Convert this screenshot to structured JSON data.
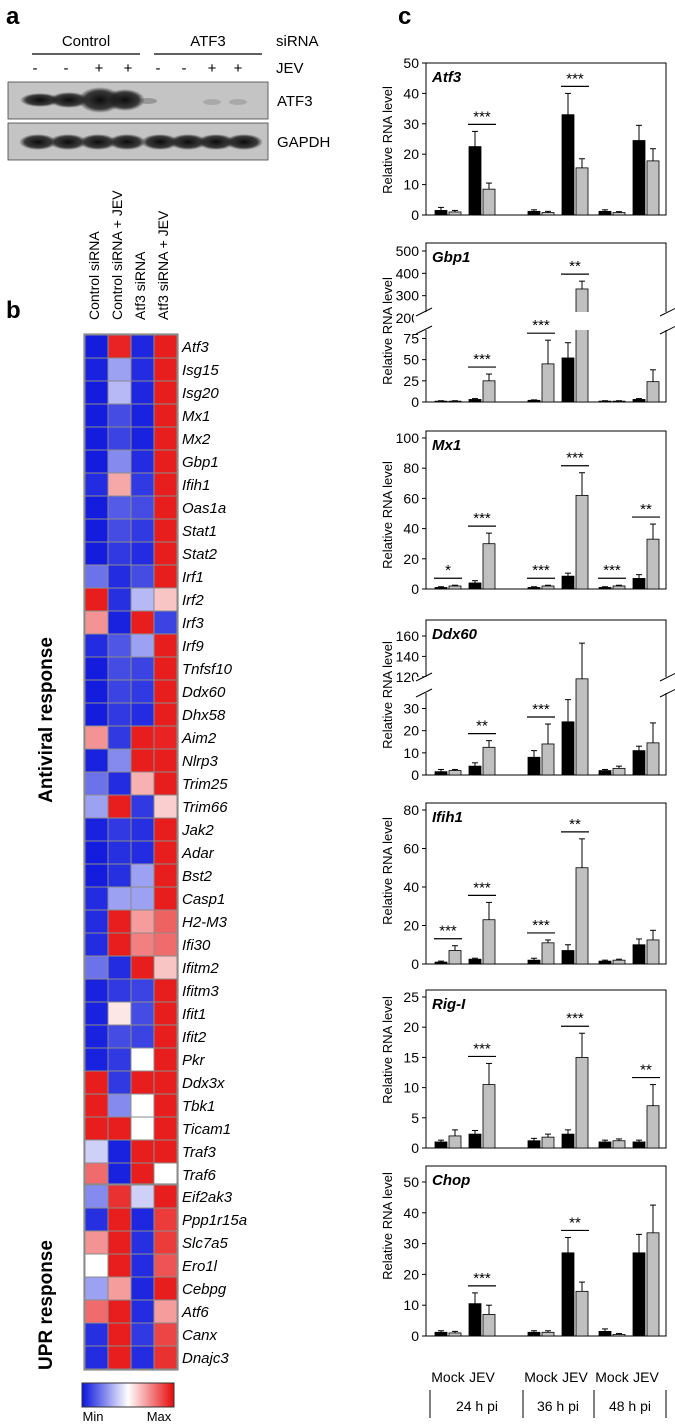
{
  "figure": {
    "panel_a": {
      "label": "a",
      "groups": [
        "Control",
        "ATF3"
      ],
      "group_row_label": "siRNA",
      "jev_row_label": "JEV",
      "jev_signs": [
        "-",
        "-",
        "+",
        "+",
        "-",
        "-",
        "+",
        "+"
      ],
      "blots": [
        "ATF3",
        "GAPDH"
      ]
    },
    "panel_b": {
      "label": "b",
      "columns": [
        "Control siRNA",
        "Control siRNA + JEV",
        "Atf3  siRNA",
        "Atf3  siRNA + JEV"
      ],
      "section_antiviral": "Antiviral response",
      "section_upr": "UPR response",
      "legend_min": "Min",
      "legend_max": "Max",
      "antiviral_genes": [
        {
          "gene": "Atf3",
          "values": [
            0.02,
            0.95,
            0.04,
            0.96
          ]
        },
        {
          "gene": "Isg15",
          "values": [
            0.03,
            0.3,
            0.05,
            0.96
          ]
        },
        {
          "gene": "Isg20",
          "values": [
            0.02,
            0.35,
            0.04,
            0.96
          ]
        },
        {
          "gene": "Mx1",
          "values": [
            0.02,
            0.12,
            0.03,
            0.96
          ]
        },
        {
          "gene": "Mx2",
          "values": [
            0.02,
            0.1,
            0.03,
            0.96
          ]
        },
        {
          "gene": "Gbp1",
          "values": [
            0.02,
            0.25,
            0.05,
            0.96
          ]
        },
        {
          "gene": "Ifih1",
          "values": [
            0.05,
            0.68,
            0.08,
            0.96
          ]
        },
        {
          "gene": "Oas1a",
          "values": [
            0.02,
            0.15,
            0.12,
            0.96
          ]
        },
        {
          "gene": "Stat1",
          "values": [
            0.02,
            0.12,
            0.08,
            0.96
          ]
        },
        {
          "gene": "Stat2",
          "values": [
            0.02,
            0.08,
            0.05,
            0.96
          ]
        },
        {
          "gene": "Irf1",
          "values": [
            0.2,
            0.05,
            0.12,
            0.96
          ]
        },
        {
          "gene": "Irf2",
          "values": [
            0.96,
            0.06,
            0.35,
            0.62
          ]
        },
        {
          "gene": "Irf3",
          "values": [
            0.72,
            0.03,
            0.96,
            0.1
          ]
        },
        {
          "gene": "Irf9",
          "values": [
            0.05,
            0.14,
            0.3,
            0.96
          ]
        },
        {
          "gene": "Tnfsf10",
          "values": [
            0.02,
            0.12,
            0.1,
            0.96
          ]
        },
        {
          "gene": "Ddx60",
          "values": [
            0.02,
            0.1,
            0.08,
            0.96
          ]
        },
        {
          "gene": "Dhx58",
          "values": [
            0.02,
            0.08,
            0.05,
            0.96
          ]
        },
        {
          "gene": "Aim2",
          "values": [
            0.72,
            0.08,
            0.96,
            0.95
          ]
        },
        {
          "gene": "Nlrp3",
          "values": [
            0.03,
            0.25,
            0.96,
            0.96
          ]
        },
        {
          "gene": "Trim25",
          "values": [
            0.2,
            0.05,
            0.66,
            0.96
          ]
        },
        {
          "gene": "Trim66",
          "values": [
            0.3,
            0.96,
            0.08,
            0.6
          ]
        },
        {
          "gene": "Jak2",
          "values": [
            0.03,
            0.08,
            0.06,
            0.96
          ]
        },
        {
          "gene": "Adar",
          "values": [
            0.02,
            0.06,
            0.05,
            0.96
          ]
        },
        {
          "gene": "Bst2",
          "values": [
            0.02,
            0.06,
            0.3,
            0.96
          ]
        },
        {
          "gene": "Casp1",
          "values": [
            0.05,
            0.3,
            0.3,
            0.96
          ]
        },
        {
          "gene": "H2-M3",
          "values": [
            0.05,
            0.96,
            0.7,
            0.82
          ]
        },
        {
          "gene": "Ifi30",
          "values": [
            0.05,
            0.96,
            0.76,
            0.8
          ]
        },
        {
          "gene": "Ifitm2",
          "values": [
            0.2,
            0.05,
            0.96,
            0.62
          ]
        },
        {
          "gene": "Ifitm3",
          "values": [
            0.03,
            0.08,
            0.1,
            0.96
          ]
        },
        {
          "gene": "Ifit1",
          "values": [
            0.03,
            0.55,
            0.12,
            0.96
          ]
        },
        {
          "gene": "Ifit2",
          "values": [
            0.03,
            0.12,
            0.1,
            0.96
          ]
        },
        {
          "gene": "Pkr",
          "values": [
            0.03,
            0.08,
            0.5,
            0.96
          ]
        },
        {
          "gene": "Ddx3x",
          "values": [
            0.96,
            0.08,
            0.96,
            0.96
          ]
        },
        {
          "gene": "Tbk1",
          "values": [
            0.96,
            0.25,
            0.5,
            0.96
          ]
        },
        {
          "gene": "Ticam1",
          "values": [
            0.96,
            0.96,
            0.5,
            0.96
          ]
        },
        {
          "gene": "Traf3",
          "values": [
            0.4,
            0.03,
            0.96,
            0.96
          ]
        },
        {
          "gene": "Traf6",
          "values": [
            0.8,
            0.03,
            0.96,
            0.5
          ]
        }
      ],
      "upr_genes": [
        {
          "gene": "Eif2ak3",
          "values": [
            0.25,
            0.92,
            0.4,
            0.96
          ]
        },
        {
          "gene": "Ppp1r15a",
          "values": [
            0.06,
            0.96,
            0.04,
            0.9
          ]
        },
        {
          "gene": "Slc7a5",
          "values": [
            0.72,
            0.96,
            0.06,
            0.9
          ]
        },
        {
          "gene": "Ero1l",
          "values": [
            0.5,
            0.96,
            0.05,
            0.85
          ]
        },
        {
          "gene": "Cebpg",
          "values": [
            0.3,
            0.7,
            0.04,
            0.96
          ]
        },
        {
          "gene": "Atf6",
          "values": [
            0.8,
            0.96,
            0.05,
            0.7
          ]
        },
        {
          "gene": "Canx",
          "values": [
            0.06,
            0.96,
            0.08,
            0.88
          ]
        },
        {
          "gene": "Dnajc3",
          "values": [
            0.05,
            0.96,
            0.05,
            0.92
          ]
        }
      ]
    },
    "panel_c": {
      "label": "c",
      "ylabel": "Relative RNA level",
      "x_labels": [
        "Mock",
        "JEV",
        "Mock",
        "JEV",
        "Mock",
        "JEV"
      ],
      "timepoints": [
        "24 h pi",
        "36 h pi",
        "48 h pi"
      ]
    }
  },
  "chart_data": [
    {
      "type": "bar",
      "title": "Atf3",
      "ylabel": "Relative RNA level",
      "categories": [
        "24 h pi Mock",
        "24 h pi JEV",
        "36 h pi Mock",
        "36 h pi JEV",
        "48 h pi Mock",
        "48 h pi JEV"
      ],
      "series": [
        {
          "name": "Control siRNA",
          "color": "#000000",
          "values": [
            1.5,
            22.5,
            1.2,
            33,
            1.2,
            24.5
          ],
          "errors": [
            1,
            5,
            0.5,
            7,
            0.5,
            5
          ]
        },
        {
          "name": "Atf3 siRNA",
          "color": "#c0c0c0",
          "values": [
            1,
            8.5,
            0.8,
            15.5,
            0.8,
            17.8
          ],
          "errors": [
            0.5,
            2,
            0.4,
            3,
            0.3,
            4
          ]
        }
      ],
      "ylim": [
        0,
        50
      ],
      "yticks": [
        0,
        10,
        20,
        30,
        40,
        50
      ],
      "significance": [
        {
          "group": 1,
          "label": "***"
        },
        {
          "group": 3,
          "label": "***"
        }
      ]
    },
    {
      "type": "bar",
      "title": "Gbp1",
      "ylabel": "Relative RNA level",
      "axis_break": true,
      "categories": [
        "24 h pi Mock",
        "24 h pi JEV",
        "36 h pi Mock",
        "36 h pi JEV",
        "48 h pi Mock",
        "48 h pi JEV"
      ],
      "series": [
        {
          "name": "Control siRNA",
          "color": "#000000",
          "values": [
            1,
            3,
            2,
            52,
            1,
            3
          ],
          "errors": [
            0.5,
            1,
            0.5,
            18,
            0.5,
            1
          ]
        },
        {
          "name": "Atf3 siRNA",
          "color": "#c0c0c0",
          "values": [
            1,
            25,
            45,
            330,
            1,
            24
          ],
          "errors": [
            0.5,
            8,
            28,
            35,
            0.5,
            14
          ]
        }
      ],
      "yticks": [
        0,
        25,
        50,
        75,
        200,
        300,
        400,
        500
      ],
      "significance": [
        {
          "group": 1,
          "label": "***"
        },
        {
          "group": 2,
          "label": "***"
        },
        {
          "group": 3,
          "label": "**"
        }
      ]
    },
    {
      "type": "bar",
      "title": "Mx1",
      "ylabel": "Relative RNA level",
      "categories": [
        "24 h pi Mock",
        "24 h pi JEV",
        "36 h pi Mock",
        "36 h pi JEV",
        "48 h pi Mock",
        "48 h pi JEV"
      ],
      "series": [
        {
          "name": "Control siRNA",
          "color": "#000000",
          "values": [
            1,
            4,
            1,
            8.5,
            1,
            7
          ],
          "errors": [
            0.5,
            1.5,
            0.5,
            2,
            0.5,
            2.5
          ]
        },
        {
          "name": "Atf3 siRNA",
          "color": "#c0c0c0",
          "values": [
            2,
            30,
            2,
            62,
            2,
            33
          ],
          "errors": [
            0.5,
            7,
            0.5,
            15,
            0.5,
            10
          ]
        }
      ],
      "ylim": [
        0,
        100
      ],
      "yticks": [
        0,
        20,
        40,
        60,
        80,
        100
      ],
      "significance": [
        {
          "group": 0,
          "label": "*"
        },
        {
          "group": 1,
          "label": "***"
        },
        {
          "group": 2,
          "label": "***"
        },
        {
          "group": 3,
          "label": "***"
        },
        {
          "group": 4,
          "label": "***"
        },
        {
          "group": 5,
          "label": "**"
        }
      ]
    },
    {
      "type": "bar",
      "title": "Ddx60",
      "ylabel": "Relative RNA level",
      "axis_break": true,
      "categories": [
        "24 h pi Mock",
        "24 h pi JEV",
        "36 h pi Mock",
        "36 h pi JEV",
        "48 h pi Mock",
        "48 h pi JEV"
      ],
      "series": [
        {
          "name": "Control siRNA",
          "color": "#000000",
          "values": [
            1.5,
            4,
            8,
            24,
            2,
            11
          ],
          "errors": [
            1,
            1.5,
            3,
            10,
            0.5,
            2
          ]
        },
        {
          "name": "Atf3 siRNA",
          "color": "#c0c0c0",
          "values": [
            2,
            12.5,
            14,
            118,
            3,
            14.5
          ],
          "errors": [
            0.5,
            3,
            9,
            35,
            1,
            9
          ]
        }
      ],
      "yticks": [
        0,
        10,
        20,
        30,
        120,
        140,
        160
      ],
      "significance": [
        {
          "group": 1,
          "label": "**"
        },
        {
          "group": 2,
          "label": "***"
        }
      ]
    },
    {
      "type": "bar",
      "title": "Ifih1",
      "ylabel": "Relative RNA level",
      "categories": [
        "24 h pi Mock",
        "24 h pi JEV",
        "36 h pi Mock",
        "36 h pi JEV",
        "48 h pi Mock",
        "48 h pi JEV"
      ],
      "series": [
        {
          "name": "Control siRNA",
          "color": "#000000",
          "values": [
            1,
            2.5,
            2,
            7,
            1.5,
            10
          ],
          "errors": [
            0.5,
            0.5,
            1,
            3,
            0.5,
            3
          ]
        },
        {
          "name": "Atf3 siRNA",
          "color": "#c0c0c0",
          "values": [
            7,
            23,
            11,
            50,
            2,
            12.5
          ],
          "errors": [
            2.5,
            9,
            1.5,
            15,
            0.5,
            5
          ]
        }
      ],
      "ylim": [
        0,
        80
      ],
      "yticks": [
        0,
        20,
        40,
        60,
        80
      ],
      "significance": [
        {
          "group": 0,
          "label": "***"
        },
        {
          "group": 1,
          "label": "***"
        },
        {
          "group": 2,
          "label": "***"
        },
        {
          "group": 3,
          "label": "**"
        }
      ]
    },
    {
      "type": "bar",
      "title": "Rig-I",
      "ylabel": "Relative RNA level",
      "categories": [
        "24 h pi Mock",
        "24 h pi JEV",
        "36 h pi Mock",
        "36 h pi JEV",
        "48 h pi Mock",
        "48 h pi JEV"
      ],
      "series": [
        {
          "name": "Control siRNA",
          "color": "#000000",
          "values": [
            1,
            2.3,
            1.2,
            2.3,
            1,
            1
          ],
          "errors": [
            0.3,
            0.6,
            0.4,
            0.7,
            0.3,
            0.3
          ]
        },
        {
          "name": "Atf3 siRNA",
          "color": "#c0c0c0",
          "values": [
            2,
            10.5,
            1.8,
            15,
            1.2,
            7
          ],
          "errors": [
            1,
            3.5,
            0.5,
            4,
            0.3,
            3.5
          ]
        }
      ],
      "ylim": [
        0,
        25
      ],
      "yticks": [
        0,
        5,
        10,
        15,
        20,
        25
      ],
      "significance": [
        {
          "group": 1,
          "label": "***"
        },
        {
          "group": 3,
          "label": "***"
        },
        {
          "group": 5,
          "label": "**"
        }
      ]
    },
    {
      "type": "bar",
      "title": "Chop",
      "ylabel": "Relative RNA level",
      "categories": [
        "24 h pi Mock",
        "24 h pi JEV",
        "36 h pi Mock",
        "36 h pi JEV",
        "48 h pi Mock",
        "48 h pi JEV"
      ],
      "series": [
        {
          "name": "Control siRNA",
          "color": "#000000",
          "values": [
            1.2,
            10.5,
            1.2,
            27,
            1.5,
            27
          ],
          "errors": [
            0.5,
            3.5,
            0.5,
            5,
            0.8,
            6
          ]
        },
        {
          "name": "Atf3 siRNA",
          "color": "#c0c0c0",
          "values": [
            1,
            7,
            1.2,
            14.5,
            0.5,
            33.5
          ],
          "errors": [
            0.5,
            3,
            0.5,
            3,
            0.3,
            9
          ]
        }
      ],
      "ylim": [
        0,
        50
      ],
      "yticks": [
        0,
        10,
        20,
        30,
        40,
        50
      ],
      "significance": [
        {
          "group": 1,
          "label": "***"
        },
        {
          "group": 3,
          "label": "**"
        }
      ]
    }
  ]
}
